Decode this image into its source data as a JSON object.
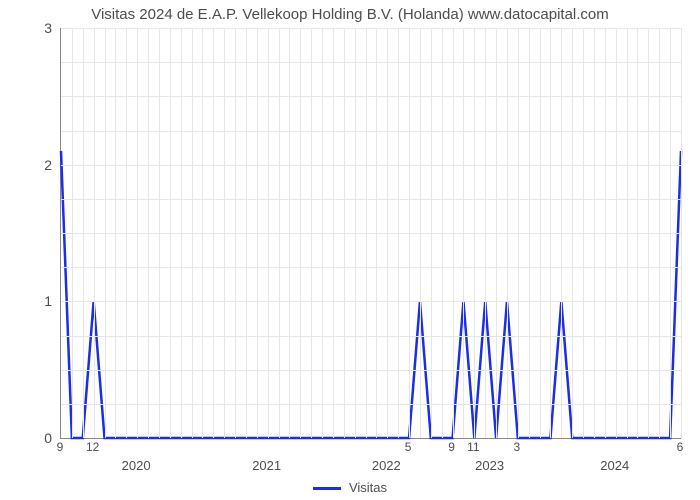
{
  "chart": {
    "type": "line",
    "title": "Visitas 2024 de E.A.P. Vellekoop Holding B.V. (Holanda) www.datocapital.com",
    "title_fontsize": 15,
    "title_color": "#4d4d4d",
    "background_color": "#ffffff",
    "grid_color": "#e6e6e6",
    "axis_color": "#888888",
    "tick_label_color": "#4d4d4d",
    "series": {
      "name": "Visitas",
      "color": "#1b2ee5",
      "line_width": 2.5,
      "x": [
        0,
        1,
        2,
        3,
        4,
        5,
        6,
        7,
        8,
        9,
        10,
        11,
        12,
        13,
        14,
        15,
        16,
        17,
        18,
        19,
        20,
        21,
        22,
        23,
        24,
        25,
        26,
        27,
        28,
        29,
        30,
        31,
        32,
        33,
        34,
        35,
        36,
        37,
        38,
        39,
        40,
        41,
        42,
        43,
        44,
        45,
        46,
        47,
        48,
        49,
        50,
        51,
        52,
        53,
        54,
        55,
        56,
        57
      ],
      "y": [
        2.1,
        0,
        0,
        1,
        0,
        0,
        0,
        0,
        0,
        0,
        0,
        0,
        0,
        0,
        0,
        0,
        0,
        0,
        0,
        0,
        0,
        0,
        0,
        0,
        0,
        0,
        0,
        0,
        0,
        0,
        0,
        0,
        0,
        1,
        0,
        0,
        0,
        1,
        0,
        1,
        0,
        1,
        0,
        0,
        0,
        0,
        1,
        0,
        0,
        0,
        0,
        0,
        0,
        0,
        0,
        0,
        0,
        2.1
      ]
    },
    "legend": {
      "label": "Visitas",
      "position": "bottom-center"
    },
    "xaxis": {
      "domain_min": 0,
      "domain_max": 57,
      "month_ticks": [
        {
          "pos": 0,
          "label": "9"
        },
        {
          "pos": 3,
          "label": "12"
        },
        {
          "pos": 32,
          "label": "5"
        },
        {
          "pos": 36,
          "label": "9"
        },
        {
          "pos": 38,
          "label": "11"
        },
        {
          "pos": 42,
          "label": "3"
        },
        {
          "pos": 57,
          "label": "6"
        }
      ],
      "year_ticks": [
        {
          "pos": 7,
          "label": "2020"
        },
        {
          "pos": 19,
          "label": "2021"
        },
        {
          "pos": 30,
          "label": "2022"
        },
        {
          "pos": 39.5,
          "label": "2023"
        },
        {
          "pos": 51,
          "label": "2024"
        }
      ],
      "minor_grid_step": 1
    },
    "yaxis": {
      "domain_min": 0,
      "domain_max": 3,
      "ticks": [
        0,
        1,
        2,
        3
      ],
      "minor_grid_step": 0.25
    }
  }
}
